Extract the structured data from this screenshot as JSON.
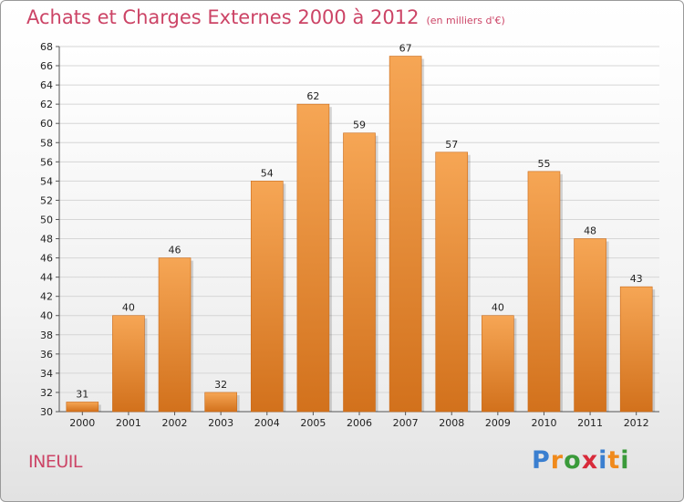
{
  "title": "Achats et Charges Externes 2000 à 2012",
  "subtitle": "(en milliers d'€)",
  "commune": "INEUIL",
  "logo": {
    "letters": [
      {
        "ch": "P",
        "color": "#3a7fd0"
      },
      {
        "ch": "r",
        "color": "#f08a1c"
      },
      {
        "ch": "o",
        "color": "#3a9a3a"
      },
      {
        "ch": "x",
        "color": "#d82a3a"
      },
      {
        "ch": "i",
        "color": "#3a7fd0"
      },
      {
        "ch": "t",
        "color": "#f08a1c"
      },
      {
        "ch": "i",
        "color": "#3a9a3a"
      }
    ]
  },
  "chart_data": {
    "type": "bar",
    "categories": [
      "2000",
      "2001",
      "2002",
      "2003",
      "2004",
      "2005",
      "2006",
      "2007",
      "2008",
      "2009",
      "2010",
      "2011",
      "2012"
    ],
    "values": [
      31,
      40,
      46,
      32,
      54,
      62,
      59,
      67,
      57,
      40,
      55,
      48,
      43
    ],
    "ylim": [
      30,
      68
    ],
    "yticks": [
      30,
      32,
      34,
      36,
      38,
      40,
      42,
      44,
      46,
      48,
      50,
      52,
      54,
      56,
      58,
      60,
      62,
      64,
      66,
      68
    ],
    "grid": true,
    "bar_color_top": "#f6a655",
    "bar_color_bottom": "#d2711c",
    "title": "Achats et Charges Externes 2000 à 2012",
    "xlabel": "",
    "ylabel": ""
  }
}
